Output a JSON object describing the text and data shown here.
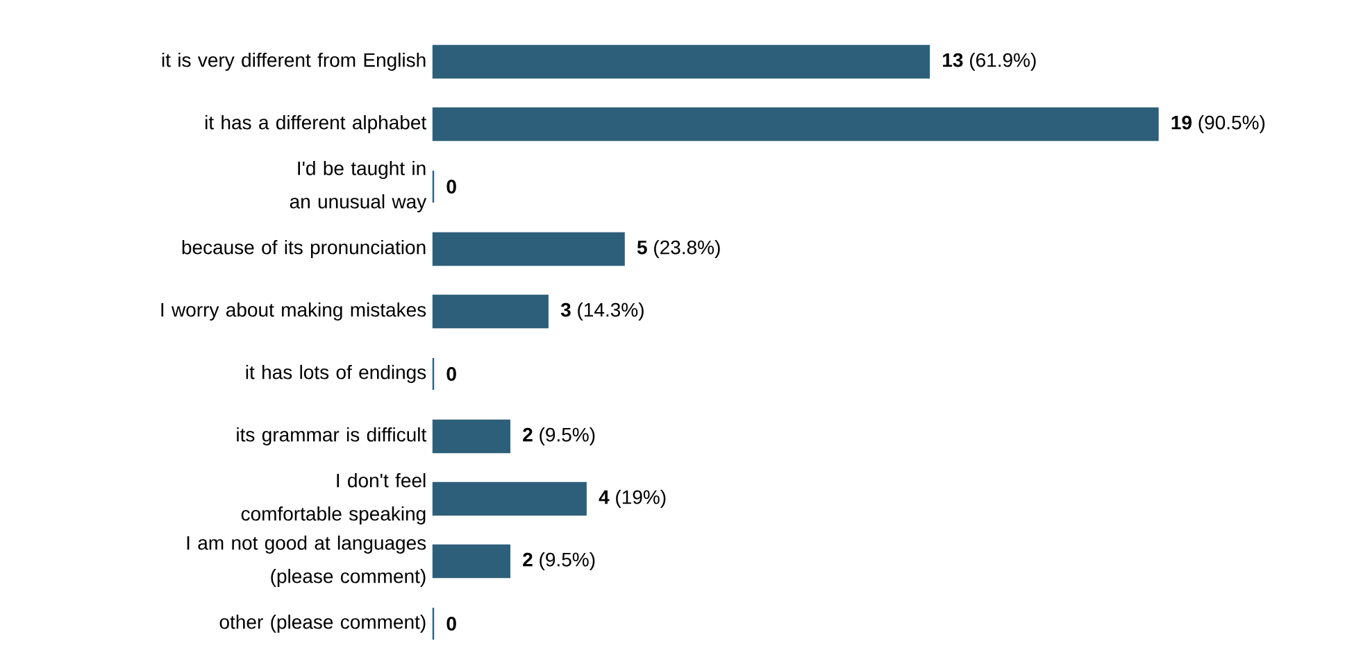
{
  "chart_data": {
    "type": "bar",
    "orientation": "horizontal",
    "color": "#2e5f7a",
    "categories": [
      "it is very different from English",
      "it has a different alphabet",
      "I'd be taught in an unusual way",
      "because of its pronunciation",
      "I worry about making mistakes",
      "it has lots of endings",
      "its grammar is difficult",
      "I don't feel comfortable speaking",
      "I am not good at languages (please comment)",
      "other (please comment)"
    ],
    "values": [
      13,
      19,
      0,
      5,
      3,
      0,
      2,
      4,
      2,
      0
    ],
    "value_labels": [
      "**13** (61.9%)",
      "**19** (90.5%)",
      "**0**",
      "**5** (23.8%)",
      "**3** (14.3%)",
      "**0**",
      "**2** (9.5%)",
      "**4** (19%)",
      "**2** (9.5%)",
      "**0**"
    ]
  }
}
